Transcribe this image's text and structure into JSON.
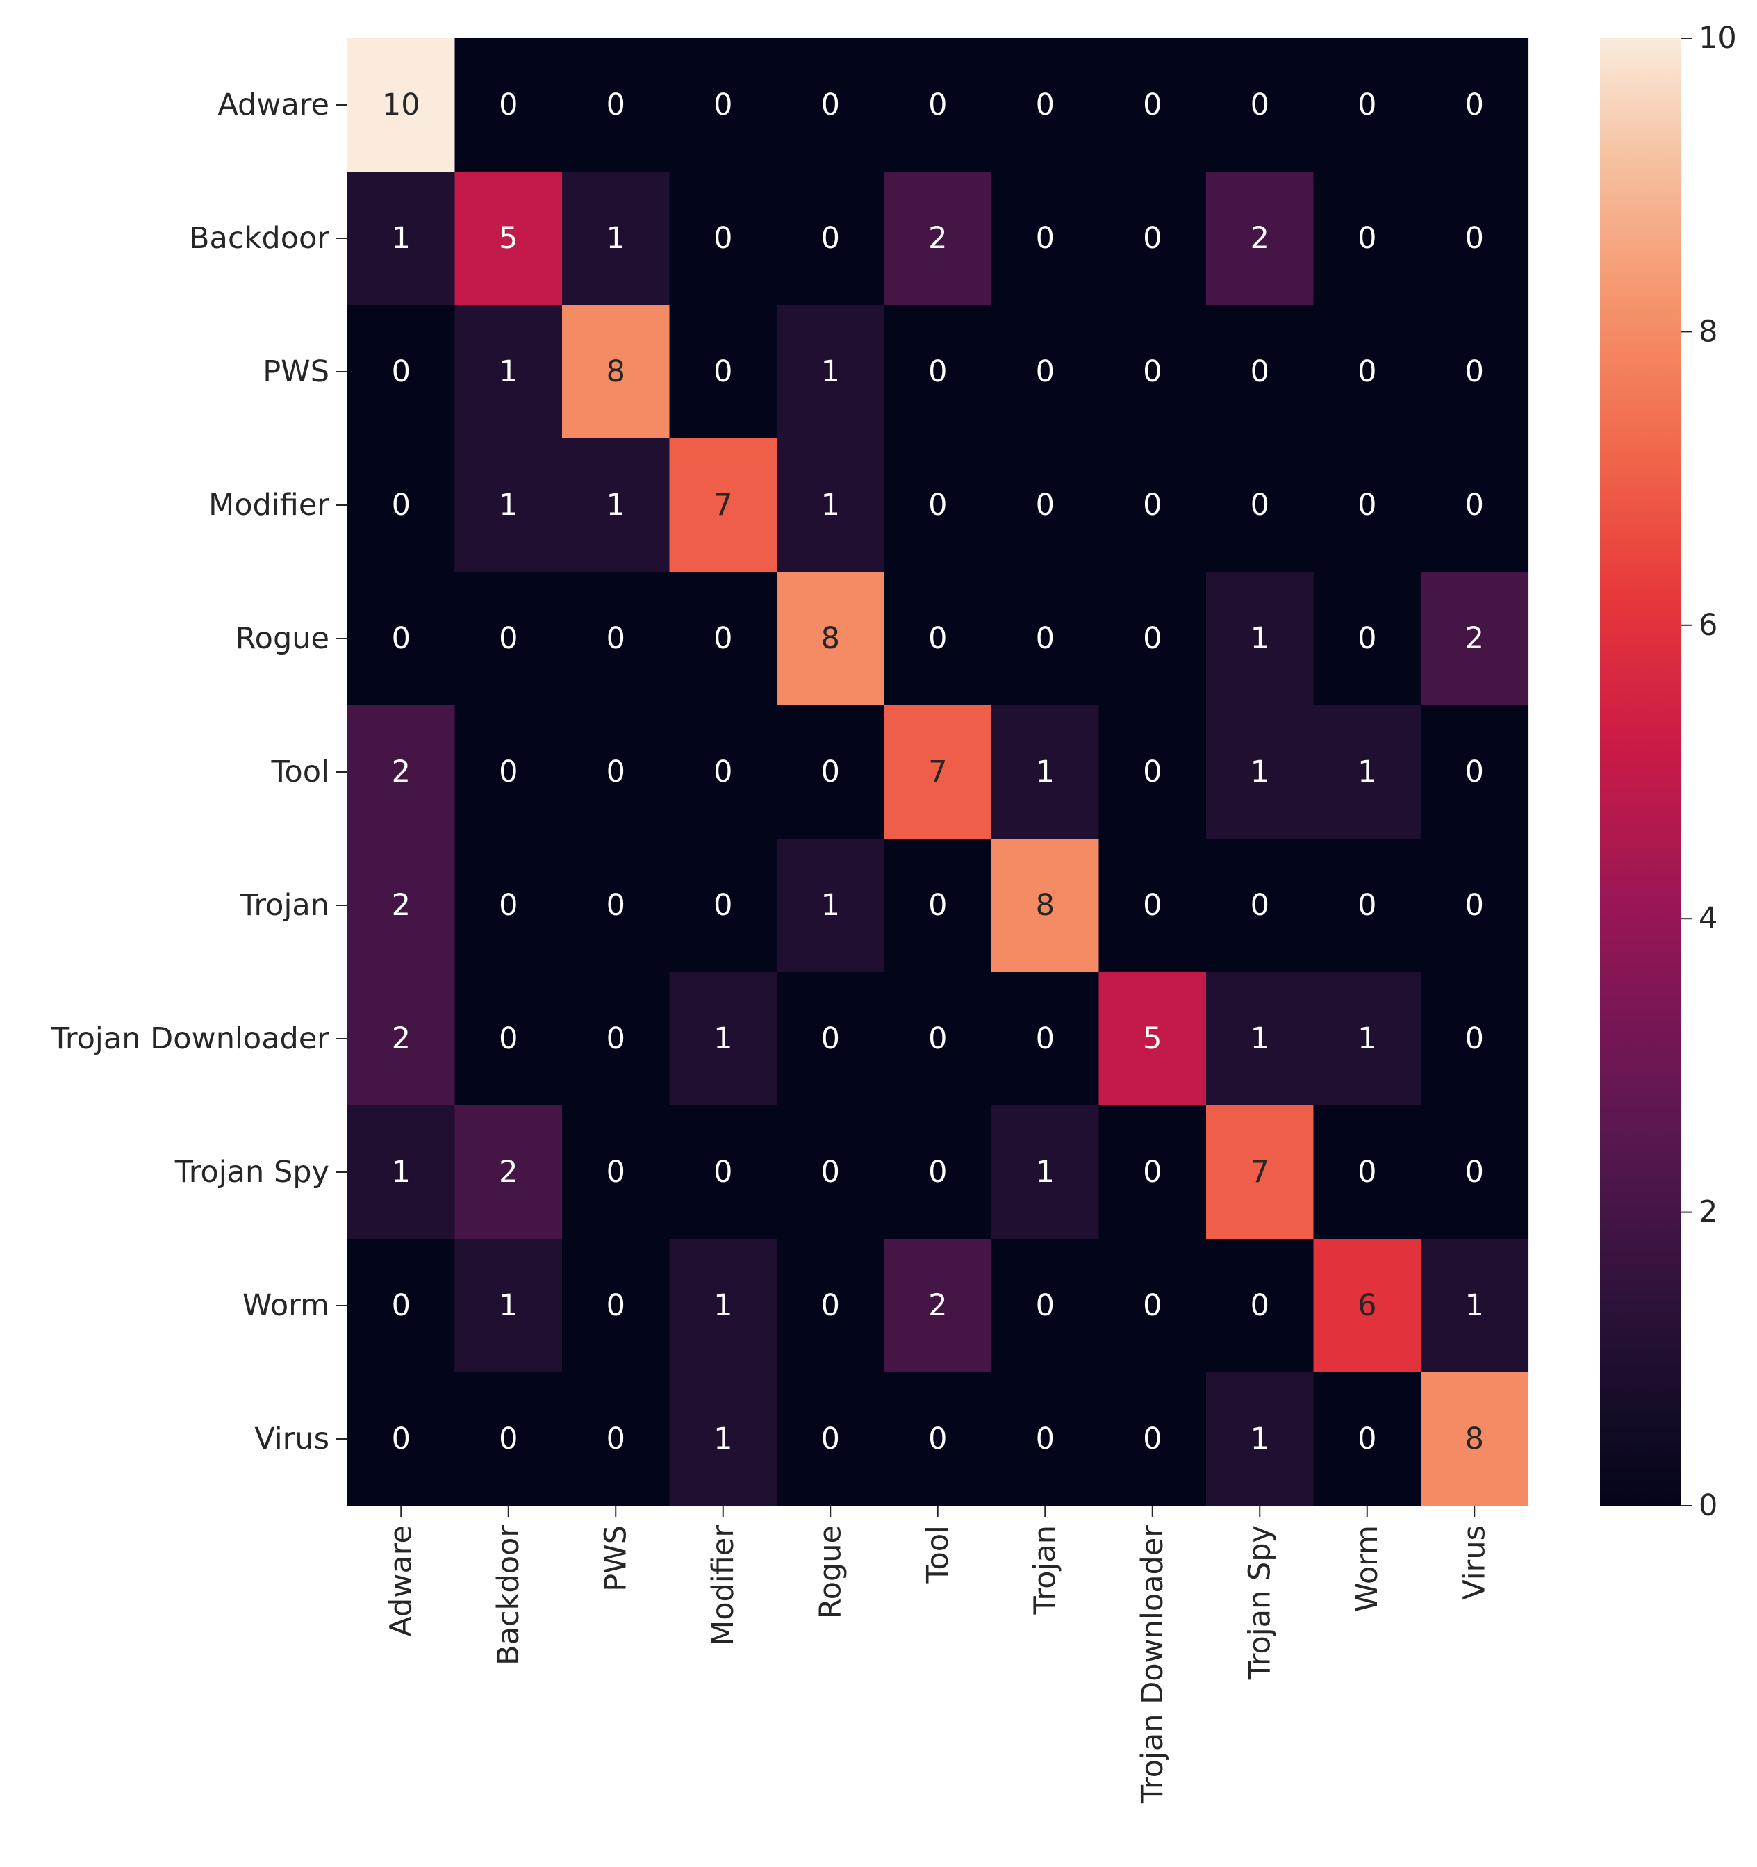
{
  "chart_data": {
    "type": "heatmap",
    "title": "",
    "xlabel": "",
    "ylabel": "",
    "row_labels": [
      "Adware",
      "Backdoor",
      "PWS",
      "Modifier",
      "Rogue",
      "Tool",
      "Trojan",
      "Trojan Downloader",
      "Trojan Spy",
      "Worm",
      "Virus"
    ],
    "col_labels": [
      "Adware",
      "Backdoor",
      "PWS",
      "Modifier",
      "Rogue",
      "Tool",
      "Trojan",
      "Trojan Downloader",
      "Trojan Spy",
      "Worm",
      "Virus"
    ],
    "values": [
      [
        10,
        0,
        0,
        0,
        0,
        0,
        0,
        0,
        0,
        0,
        0
      ],
      [
        1,
        5,
        1,
        0,
        0,
        2,
        0,
        0,
        2,
        0,
        0
      ],
      [
        0,
        1,
        8,
        0,
        1,
        0,
        0,
        0,
        0,
        0,
        0
      ],
      [
        0,
        1,
        1,
        7,
        1,
        0,
        0,
        0,
        0,
        0,
        0
      ],
      [
        0,
        0,
        0,
        0,
        8,
        0,
        0,
        0,
        1,
        0,
        2
      ],
      [
        2,
        0,
        0,
        0,
        0,
        7,
        1,
        0,
        1,
        1,
        0
      ],
      [
        2,
        0,
        0,
        0,
        1,
        0,
        8,
        0,
        0,
        0,
        0
      ],
      [
        2,
        0,
        0,
        1,
        0,
        0,
        0,
        5,
        1,
        1,
        0
      ],
      [
        1,
        2,
        0,
        0,
        0,
        0,
        1,
        0,
        7,
        0,
        0
      ],
      [
        0,
        1,
        0,
        1,
        0,
        2,
        0,
        0,
        0,
        6,
        1
      ],
      [
        0,
        0,
        0,
        1,
        0,
        0,
        0,
        0,
        1,
        0,
        8
      ]
    ],
    "colorbar": {
      "min": 0,
      "max": 10,
      "ticks": [
        0,
        2,
        4,
        6,
        8,
        10
      ],
      "colormap": "rocket"
    },
    "annotations": true,
    "grid": false
  }
}
